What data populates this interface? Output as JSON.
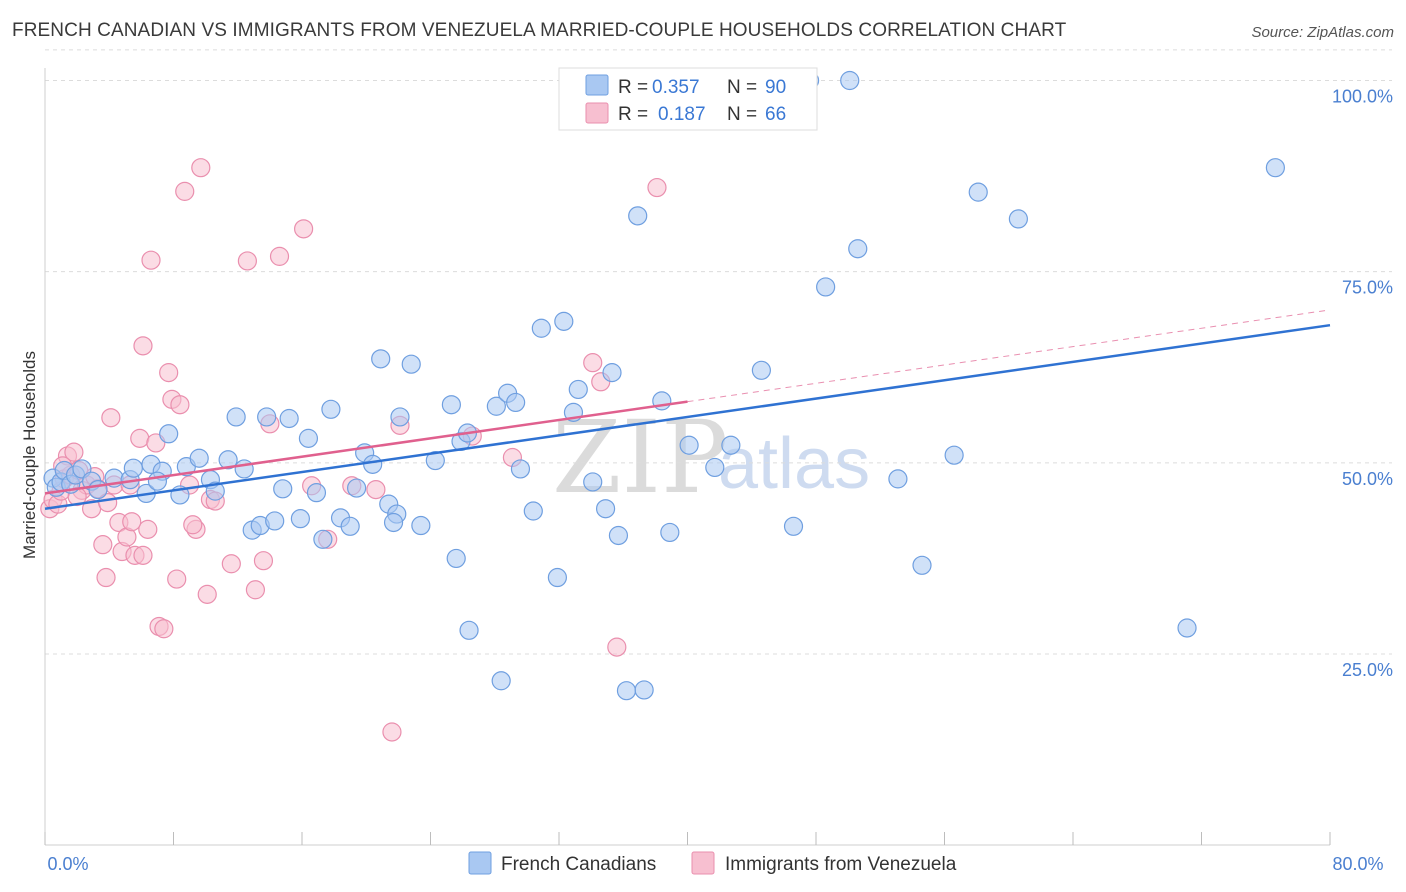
{
  "header": {
    "title": "FRENCH CANADIAN VS IMMIGRANTS FROM VENEZUELA MARRIED-COUPLE HOUSEHOLDS CORRELATION CHART",
    "source": "Source: ZipAtlas.com"
  },
  "watermark": {
    "zip": "ZIP",
    "atlas": "atlas"
  },
  "legend": {
    "rows": [
      {
        "r_label": "R =",
        "r_value": "0.357",
        "n_label": "N =",
        "n_value": "90"
      },
      {
        "r_label": "R =",
        "r_value": "0.187",
        "n_label": "N =",
        "n_value": "66"
      }
    ]
  },
  "bottom_legend": {
    "items": [
      {
        "label": "French Canadians"
      },
      {
        "label": "Immigrants from Venezuela"
      }
    ]
  },
  "chart_data": {
    "type": "scatter",
    "title": "FRENCH CANADIAN VS IMMIGRANTS FROM VENEZUELA MARRIED-COUPLE HOUSEHOLDS CORRELATION CHART",
    "xlabel": "",
    "ylabel": "Married-couple Households",
    "xlim": [
      0,
      80
    ],
    "ylim": [
      0,
      104
    ],
    "x_tick_labels": [
      "0.0%",
      "80.0%"
    ],
    "y_ticks": [
      25,
      50,
      75,
      100
    ],
    "y_tick_labels": [
      "25.0%",
      "50.0%",
      "75.0%",
      "100.0%"
    ],
    "grid": true,
    "legend_position": "top-center",
    "colors": {
      "blue_fill": "#a9c8f2",
      "blue_stroke": "#6f9fe0",
      "blue_line": "#2f72d2",
      "pink_fill": "#f7bfd0",
      "pink_stroke": "#ea8fae",
      "pink_line": "#e0608e",
      "grid": "#dcdcdc",
      "axis_text": "#4a7fd0"
    },
    "series": [
      {
        "name": "French Canadians",
        "color": "blue",
        "r": 0.357,
        "n": 90,
        "trend": {
          "x": [
            0,
            80
          ],
          "y": [
            44.0,
            68.0
          ]
        },
        "points": [
          [
            0.5,
            48.0
          ],
          [
            0.7,
            46.8
          ],
          [
            1.0,
            47.5
          ],
          [
            1.2,
            49.0
          ],
          [
            1.6,
            47.2
          ],
          [
            1.9,
            48.4
          ],
          [
            2.3,
            49.2
          ],
          [
            2.9,
            47.6
          ],
          [
            3.3,
            46.5
          ],
          [
            4.3,
            48.0
          ],
          [
            5.3,
            47.8
          ],
          [
            5.5,
            49.3
          ],
          [
            6.3,
            46.0
          ],
          [
            6.6,
            49.8
          ],
          [
            7.3,
            48.9
          ],
          [
            7.7,
            53.8
          ],
          [
            8.4,
            45.8
          ],
          [
            8.8,
            49.5
          ],
          [
            9.6,
            50.6
          ],
          [
            10.3,
            47.8
          ],
          [
            10.6,
            46.3
          ],
          [
            11.4,
            50.4
          ],
          [
            11.9,
            56.0
          ],
          [
            12.4,
            49.2
          ],
          [
            12.9,
            41.2
          ],
          [
            13.4,
            41.8
          ],
          [
            13.8,
            56.0
          ],
          [
            14.3,
            42.4
          ],
          [
            14.8,
            46.6
          ],
          [
            15.2,
            55.8
          ],
          [
            15.9,
            42.7
          ],
          [
            16.4,
            53.2
          ],
          [
            16.9,
            46.1
          ],
          [
            17.3,
            40.0
          ],
          [
            17.8,
            57.0
          ],
          [
            18.4,
            42.8
          ],
          [
            19.0,
            41.7
          ],
          [
            19.4,
            46.7
          ],
          [
            19.9,
            51.3
          ],
          [
            20.4,
            49.8
          ],
          [
            20.9,
            63.6
          ],
          [
            21.4,
            44.6
          ],
          [
            21.9,
            43.3
          ],
          [
            22.1,
            56.0
          ],
          [
            22.8,
            62.9
          ],
          [
            23.4,
            41.8
          ],
          [
            24.3,
            50.3
          ],
          [
            25.3,
            57.6
          ],
          [
            25.6,
            37.5
          ],
          [
            25.9,
            52.8
          ],
          [
            26.3,
            53.9
          ],
          [
            28.1,
            57.4
          ],
          [
            28.8,
            59.1
          ],
          [
            29.3,
            57.9
          ],
          [
            28.4,
            21.5
          ],
          [
            29.6,
            49.2
          ],
          [
            30.4,
            43.7
          ],
          [
            30.9,
            67.6
          ],
          [
            31.9,
            35.0
          ],
          [
            32.3,
            68.5
          ],
          [
            32.9,
            56.6
          ],
          [
            33.2,
            59.6
          ],
          [
            34.1,
            47.5
          ],
          [
            34.9,
            44.0
          ],
          [
            35.3,
            61.8
          ],
          [
            35.7,
            40.5
          ],
          [
            36.2,
            20.2
          ],
          [
            36.9,
            82.3
          ],
          [
            37.3,
            20.3
          ],
          [
            38.4,
            58.1
          ],
          [
            38.9,
            40.9
          ],
          [
            40.1,
            52.3
          ],
          [
            41.7,
            49.4
          ],
          [
            42.7,
            52.3
          ],
          [
            44.6,
            62.1
          ],
          [
            46.6,
            41.7
          ],
          [
            47.6,
            100.0
          ],
          [
            48.6,
            73.0
          ],
          [
            50.1,
            100.0
          ],
          [
            50.6,
            78.0
          ],
          [
            53.1,
            47.9
          ],
          [
            54.6,
            36.6
          ],
          [
            56.6,
            51.0
          ],
          [
            58.1,
            85.4
          ],
          [
            60.6,
            81.9
          ],
          [
            71.1,
            28.4
          ],
          [
            76.6,
            88.6
          ],
          [
            21.7,
            42.2
          ],
          [
            26.4,
            28.1
          ],
          [
            7.0,
            47.6
          ]
        ]
      },
      {
        "name": "Immigrants from Venezuela",
        "color": "pink",
        "r": 0.187,
        "n": 66,
        "trend": {
          "x": [
            0,
            40
          ],
          "y": [
            46.0,
            58.0
          ]
        },
        "trend_dashed": {
          "x": [
            40,
            80
          ],
          "y": [
            58.0,
            70.0
          ]
        },
        "points": [
          [
            0.3,
            44.0
          ],
          [
            0.5,
            45.2
          ],
          [
            0.8,
            44.6
          ],
          [
            1.0,
            46.3
          ],
          [
            1.2,
            47.9
          ],
          [
            1.4,
            50.9
          ],
          [
            1.6,
            48.4
          ],
          [
            1.8,
            51.4
          ],
          [
            2.1,
            49.0
          ],
          [
            2.3,
            46.4
          ],
          [
            2.6,
            47.1
          ],
          [
            2.9,
            44.0
          ],
          [
            3.1,
            48.2
          ],
          [
            3.3,
            46.6
          ],
          [
            3.6,
            39.3
          ],
          [
            3.8,
            35.0
          ],
          [
            4.1,
            55.9
          ],
          [
            4.3,
            47.1
          ],
          [
            4.6,
            42.2
          ],
          [
            4.8,
            38.4
          ],
          [
            5.1,
            40.3
          ],
          [
            5.3,
            47.1
          ],
          [
            5.6,
            37.9
          ],
          [
            5.9,
            53.2
          ],
          [
            6.1,
            37.9
          ],
          [
            6.1,
            65.3
          ],
          [
            6.4,
            41.3
          ],
          [
            6.6,
            76.5
          ],
          [
            6.9,
            52.6
          ],
          [
            7.1,
            28.6
          ],
          [
            7.4,
            28.3
          ],
          [
            7.7,
            61.8
          ],
          [
            7.9,
            58.3
          ],
          [
            8.2,
            34.8
          ],
          [
            8.4,
            57.6
          ],
          [
            8.7,
            85.5
          ],
          [
            9.0,
            47.1
          ],
          [
            9.4,
            41.3
          ],
          [
            9.7,
            88.6
          ],
          [
            10.1,
            32.8
          ],
          [
            10.3,
            45.2
          ],
          [
            10.6,
            45.0
          ],
          [
            11.6,
            36.8
          ],
          [
            12.6,
            76.4
          ],
          [
            13.1,
            33.4
          ],
          [
            13.6,
            37.2
          ],
          [
            14.0,
            55.1
          ],
          [
            14.6,
            77.0
          ],
          [
            16.1,
            80.6
          ],
          [
            16.6,
            47.0
          ],
          [
            17.6,
            40.0
          ],
          [
            19.1,
            47.0
          ],
          [
            20.6,
            46.5
          ],
          [
            21.6,
            14.8
          ],
          [
            22.1,
            54.9
          ],
          [
            26.6,
            53.5
          ],
          [
            29.1,
            50.7
          ],
          [
            34.1,
            63.1
          ],
          [
            34.6,
            60.6
          ],
          [
            35.6,
            25.9
          ],
          [
            38.1,
            86.0
          ],
          [
            5.4,
            42.3
          ],
          [
            9.2,
            41.9
          ],
          [
            2.0,
            45.6
          ],
          [
            3.9,
            44.8
          ],
          [
            1.1,
            49.6
          ]
        ]
      }
    ]
  }
}
